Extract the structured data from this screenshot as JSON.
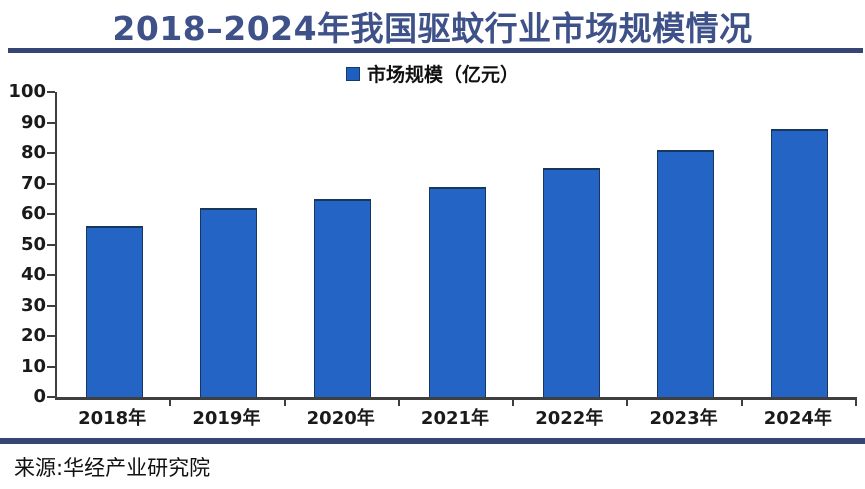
{
  "chart_data": {
    "type": "bar",
    "title": "2018–2024年我国驱蚊行业市场规模情况",
    "legend": [
      "市场规模（亿元）"
    ],
    "legend_position": "top-center",
    "categories": [
      "2018年",
      "2019年",
      "2020年",
      "2021年",
      "2022年",
      "2023年",
      "2024年"
    ],
    "series": [
      {
        "name": "市场规模（亿元）",
        "values": [
          56,
          62,
          65,
          69,
          75,
          81,
          88
        ]
      }
    ],
    "xlabel": "",
    "ylabel": "",
    "ylim": [
      0,
      100
    ],
    "ytick_step": 10,
    "grid": false,
    "bar_color": "#2464c4",
    "bar_border_color": "#17375e",
    "source": "来源:华经产业研究院"
  },
  "colors": {
    "title_text": "#3e5189",
    "rule_navy": "#364573",
    "axis": "#3f3f3f",
    "label_text": "#1a1a1a",
    "legend_swatch": "#1f5fc0",
    "legend_swatch_border": "#153a66",
    "background": "#ffffff"
  }
}
